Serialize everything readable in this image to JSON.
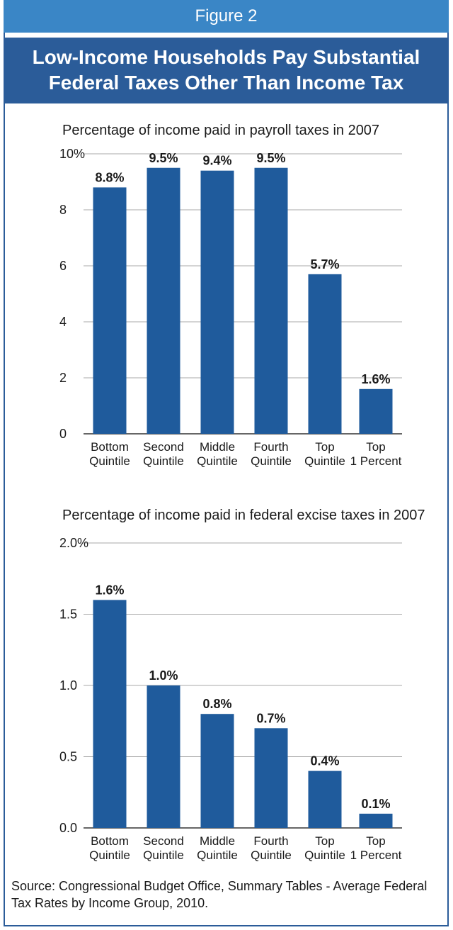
{
  "figure_label": "Figure 2",
  "header": {
    "line1": "Low-Income Households Pay Substantial",
    "line2": "Federal Taxes Other Than Income Tax"
  },
  "source": "Source: Congressional Budget Office, Summary Tables - Average Federal Tax Rates by Income Group, 2010.",
  "chart_data": [
    {
      "type": "bar",
      "title": "Percentage of income paid in payroll taxes in 2007",
      "categories": [
        [
          "Bottom",
          "Quintile"
        ],
        [
          "Second",
          "Quintile"
        ],
        [
          "Middle",
          "Quintile"
        ],
        [
          "Fourth",
          "Quintile"
        ],
        [
          "Top",
          "Quintile"
        ],
        [
          "Top",
          "1 Percent"
        ]
      ],
      "values": [
        8.8,
        9.5,
        9.4,
        9.5,
        5.7,
        1.6
      ],
      "data_labels": [
        "8.8%",
        "9.5%",
        "9.4%",
        "9.5%",
        "5.7%",
        "1.6%"
      ],
      "yticks": [
        0,
        2,
        4,
        6,
        8,
        10
      ],
      "ytick_labels": [
        "0",
        "2",
        "4",
        "6",
        "8",
        "10%"
      ],
      "ylim": [
        0,
        10
      ],
      "grid": true,
      "bar_color": "#1f5b9c"
    },
    {
      "type": "bar",
      "title": "Percentage of income paid in federal excise taxes in 2007",
      "categories": [
        [
          "Bottom",
          "Quintile"
        ],
        [
          "Second",
          "Quintile"
        ],
        [
          "Middle",
          "Quintile"
        ],
        [
          "Fourth",
          "Quintile"
        ],
        [
          "Top",
          "Quintile"
        ],
        [
          "Top",
          "1 Percent"
        ]
      ],
      "values": [
        1.6,
        1.0,
        0.8,
        0.7,
        0.4,
        0.1
      ],
      "data_labels": [
        "1.6%",
        "1.0%",
        "0.8%",
        "0.7%",
        "0.4%",
        "0.1%"
      ],
      "yticks": [
        0,
        0.5,
        1.0,
        1.5,
        2.0
      ],
      "ytick_labels": [
        "0.0",
        "0.5",
        "1.0",
        "1.5",
        "2.0%"
      ],
      "ylim": [
        0,
        2.0
      ],
      "grid": true,
      "bar_color": "#1f5b9c"
    }
  ]
}
